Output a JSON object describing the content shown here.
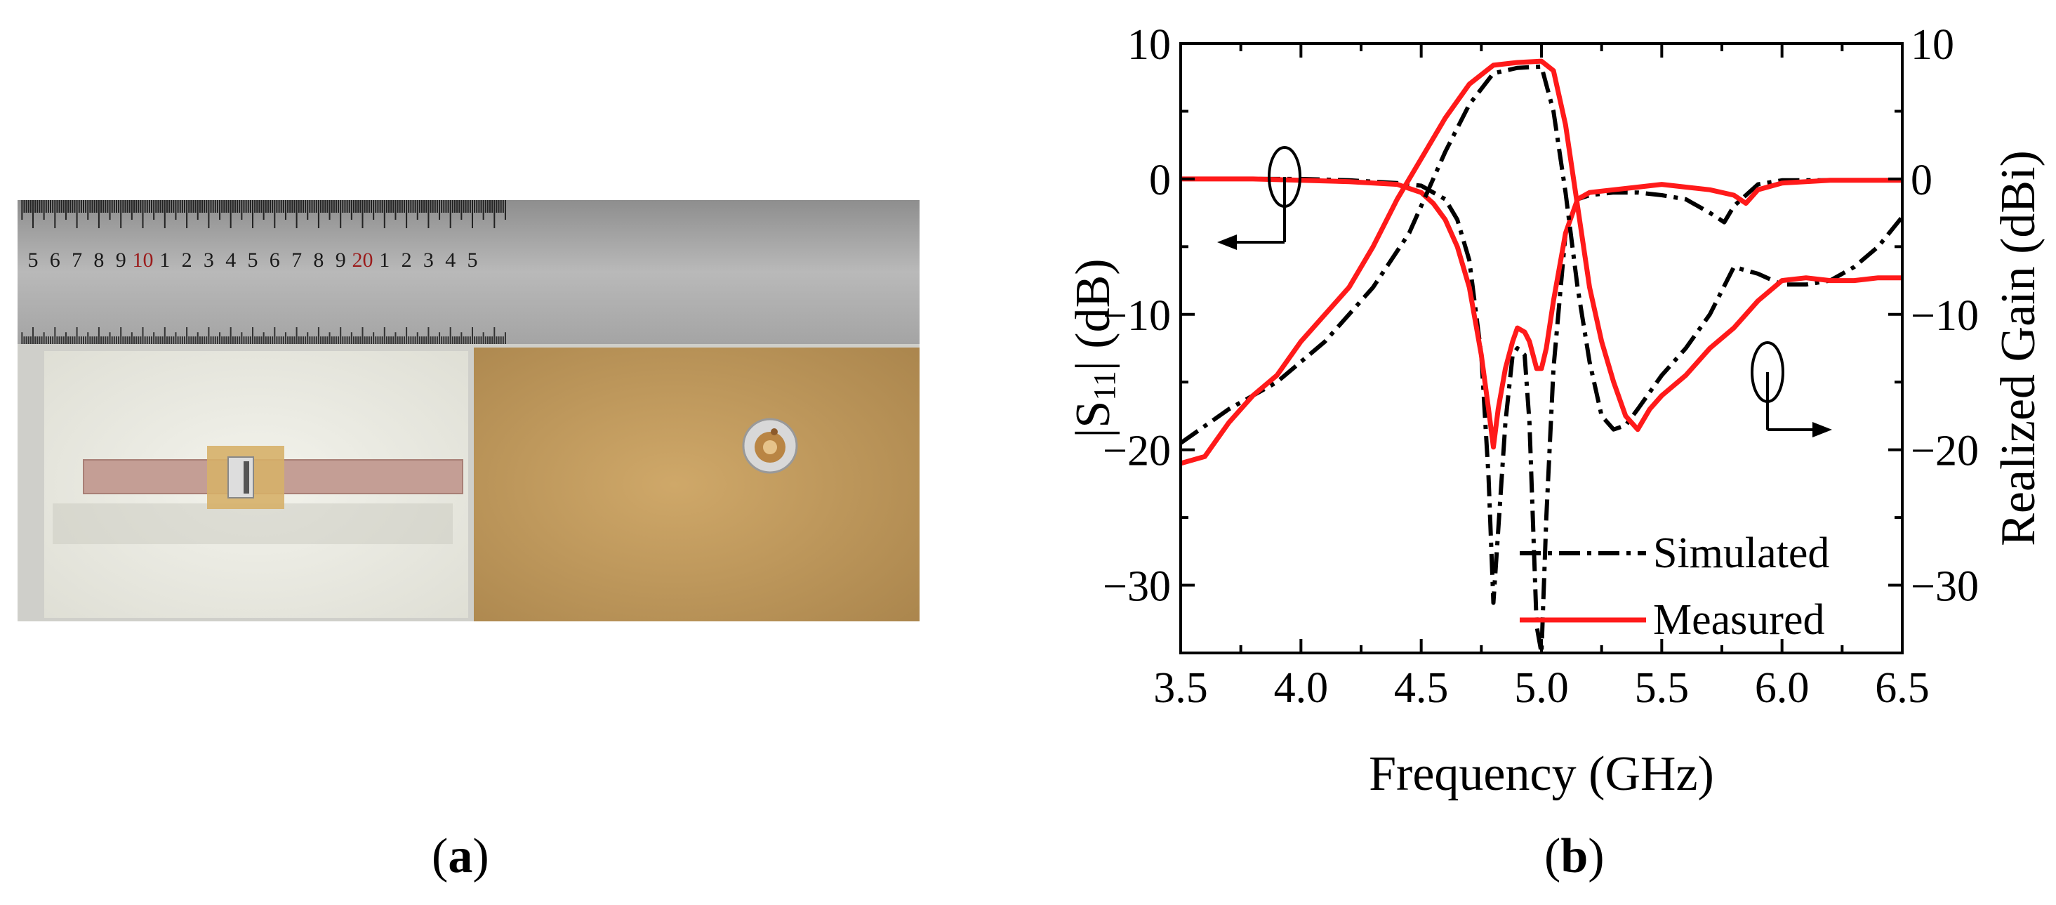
{
  "figure": {
    "panels": [
      {
        "id": "a",
        "letter": "a",
        "open": "(",
        "close": ")"
      },
      {
        "id": "b",
        "letter": "b",
        "open": "(",
        "close": ")"
      }
    ]
  },
  "photo": {
    "ruler_numbers": [
      "5",
      "6",
      "7",
      "8",
      "9",
      "10",
      "1",
      "2",
      "3",
      "4",
      "5",
      "6",
      "7",
      "8",
      "9",
      "20",
      "1",
      "2",
      "3",
      "4",
      "5"
    ],
    "ruler_red_indices": [
      5,
      15
    ]
  },
  "colors": {
    "simulated": "#000000",
    "measured": "#ff1a1a",
    "ruler_red": "#9b1c1c"
  },
  "chart_data": {
    "type": "line",
    "xlabel": "Frequency (GHz)",
    "ylabel_left": "|S11| (dB)",
    "ylabel_right": "Realized Gain (dBi)",
    "xlim": [
      3.5,
      6.5
    ],
    "ylim_left": [
      -35,
      10
    ],
    "ylim_right": [
      -35,
      10
    ],
    "xticks": [
      "3.5",
      "4.0",
      "4.5",
      "5.0",
      "5.5",
      "6.0",
      "6.5"
    ],
    "yticks_left": [
      "10",
      "0",
      "−10",
      "−20",
      "−30"
    ],
    "yticks_right": [
      "10",
      "0",
      "−10",
      "−20",
      "−30"
    ],
    "ytick_values": [
      10,
      0,
      -10,
      -20,
      -30
    ],
    "grid": false,
    "legend_position": "bottom-right",
    "series": [
      {
        "name": "Simulated",
        "quantity": "S11",
        "axis": "left",
        "style": "dashdot",
        "color": "#000000",
        "x": [
          3.5,
          3.8,
          4.0,
          4.2,
          4.4,
          4.5,
          4.6,
          4.65,
          4.7,
          4.75,
          4.78,
          4.8,
          4.82,
          4.85,
          4.88,
          4.9,
          4.93,
          4.95,
          4.97,
          4.98,
          5.0,
          5.02,
          5.05,
          5.1,
          5.15,
          5.2,
          5.3,
          5.4,
          5.5,
          5.6,
          5.7,
          5.76,
          5.8,
          5.9,
          6.0,
          6.5
        ],
        "y": [
          0,
          0,
          0,
          -0.1,
          -0.3,
          -0.5,
          -1.5,
          -3,
          -6,
          -13,
          -22,
          -31.3,
          -26,
          -18,
          -13,
          -12.5,
          -13,
          -18,
          -28,
          -33,
          -35,
          -25,
          -14,
          -4,
          -1.5,
          -1.2,
          -1,
          -1,
          -1.2,
          -1.5,
          -2.5,
          -3.2,
          -2,
          -0.4,
          -0.1,
          -0.1
        ]
      },
      {
        "name": "Measured",
        "quantity": "S11",
        "axis": "left",
        "style": "solid",
        "color": "#ff1a1a",
        "x": [
          3.5,
          3.8,
          4.0,
          4.2,
          4.4,
          4.5,
          4.55,
          4.6,
          4.65,
          4.7,
          4.75,
          4.78,
          4.8,
          4.82,
          4.85,
          4.88,
          4.9,
          4.93,
          4.95,
          4.98,
          5.0,
          5.02,
          5.05,
          5.1,
          5.15,
          5.2,
          5.3,
          5.4,
          5.5,
          5.6,
          5.7,
          5.8,
          5.85,
          5.9,
          6.0,
          6.2,
          6.5
        ],
        "y": [
          0,
          0,
          -0.1,
          -0.2,
          -0.4,
          -1,
          -1.8,
          -3,
          -5,
          -8,
          -13,
          -17,
          -19.8,
          -17,
          -14,
          -12,
          -11,
          -11.3,
          -12,
          -14,
          -14,
          -12.5,
          -9,
          -4,
          -1.5,
          -1,
          -0.8,
          -0.6,
          -0.4,
          -0.6,
          -0.8,
          -1.2,
          -1.8,
          -0.8,
          -0.3,
          -0.1,
          -0.1
        ]
      },
      {
        "name": "Simulated",
        "quantity": "Realized Gain",
        "axis": "right",
        "style": "dashdot",
        "color": "#000000",
        "x": [
          3.5,
          3.7,
          3.9,
          4.1,
          4.3,
          4.45,
          4.6,
          4.7,
          4.8,
          4.9,
          5.0,
          5.05,
          5.1,
          5.15,
          5.2,
          5.25,
          5.3,
          5.35,
          5.4,
          5.5,
          5.6,
          5.7,
          5.8,
          5.9,
          6.0,
          6.1,
          6.2,
          6.3,
          6.4,
          6.5
        ],
        "y": [
          -19.5,
          -17,
          -15,
          -12,
          -8,
          -4,
          2,
          5.5,
          7.8,
          8.2,
          8.3,
          5,
          -1,
          -8,
          -13.5,
          -17.5,
          -18.5,
          -18.2,
          -17,
          -14.5,
          -12.5,
          -10,
          -6.5,
          -7,
          -7.8,
          -7.8,
          -7.5,
          -6.5,
          -5,
          -2.8
        ]
      },
      {
        "name": "Measured",
        "quantity": "Realized Gain",
        "axis": "right",
        "style": "solid",
        "color": "#ff1a1a",
        "x": [
          3.5,
          3.6,
          3.7,
          3.8,
          3.9,
          4.0,
          4.1,
          4.2,
          4.3,
          4.4,
          4.5,
          4.6,
          4.7,
          4.8,
          4.9,
          5.0,
          5.05,
          5.1,
          5.15,
          5.2,
          5.25,
          5.3,
          5.35,
          5.4,
          5.45,
          5.5,
          5.6,
          5.7,
          5.8,
          5.9,
          6.0,
          6.1,
          6.2,
          6.3,
          6.4,
          6.5
        ],
        "y": [
          -21,
          -20.5,
          -18,
          -16,
          -14.5,
          -12,
          -10,
          -8,
          -5,
          -1.5,
          1.5,
          4.5,
          7,
          8.4,
          8.6,
          8.7,
          8,
          4,
          -2,
          -8,
          -12,
          -15,
          -17.5,
          -18.5,
          -17,
          -16,
          -14.5,
          -12.5,
          -11,
          -9,
          -7.5,
          -7.3,
          -7.5,
          -7.5,
          -7.3,
          -7.3
        ]
      }
    ]
  }
}
